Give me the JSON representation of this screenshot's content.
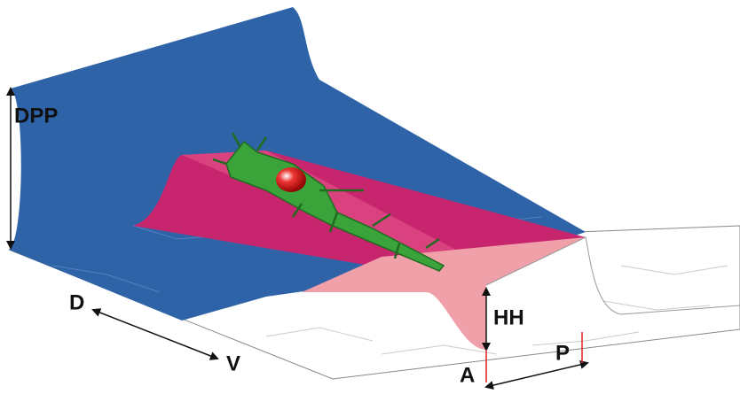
{
  "labels": {
    "dpp": "DPP",
    "hh": "HH",
    "d": "D",
    "v": "V",
    "a": "A",
    "p": "P"
  }
}
